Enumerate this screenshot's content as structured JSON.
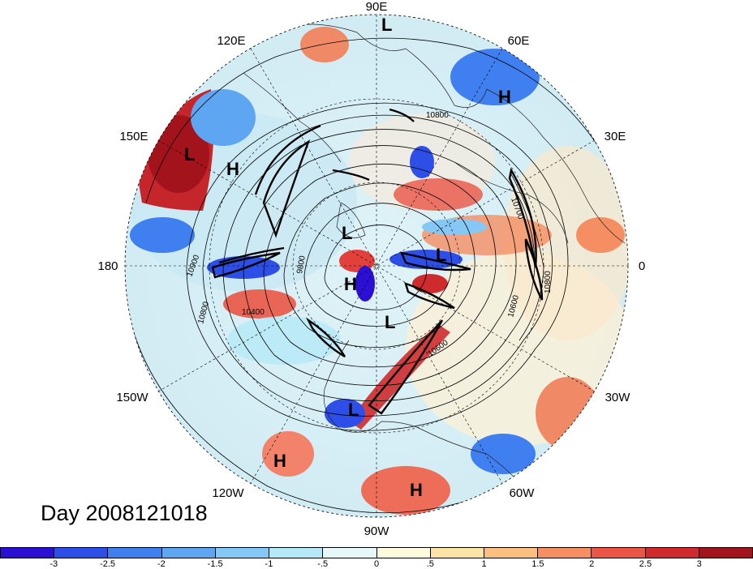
{
  "map": {
    "projection": "polar stereographic (north pole)",
    "longitude_labels": {
      "top": "90E",
      "upper_left": "120E",
      "upper_right": "60E",
      "left_upper": "150E",
      "right_upper": "30E",
      "left": "180",
      "right": "0",
      "left_lower": "150W",
      "right_lower": "30W",
      "lower_left": "120W",
      "lower_right": "60W",
      "bottom": "90W"
    },
    "pressure_centers": [
      {
        "type": "L",
        "label": "L"
      },
      {
        "type": "H",
        "label": "H"
      },
      {
        "type": "L",
        "label": "L"
      },
      {
        "type": "H",
        "label": "H"
      },
      {
        "type": "L",
        "label": "L"
      },
      {
        "type": "H",
        "label": "H"
      },
      {
        "type": "L",
        "label": "L"
      },
      {
        "type": "L",
        "label": "L"
      },
      {
        "type": "L",
        "label": "L"
      },
      {
        "type": "H",
        "label": "H"
      },
      {
        "type": "H",
        "label": "H"
      }
    ],
    "contour_labels": [
      "10800",
      "10700",
      "10900",
      "9800",
      "10800",
      "10400",
      "10600",
      "10600",
      "10800"
    ]
  },
  "caption": "Day 2008121018",
  "colorbar": {
    "colors": [
      "#2b0fd2",
      "#2d4fe8",
      "#3f7fef",
      "#5fa6f2",
      "#86c8f5",
      "#b5e9f7",
      "#e6f8fa",
      "#fffbdc",
      "#fde4a6",
      "#fbbf80",
      "#f58e63",
      "#ea5545",
      "#cf2a2e",
      "#a3131c"
    ],
    "tick_labels": [
      "-3",
      "-2.5",
      "-2",
      "-1.5",
      "-1",
      "-.5",
      "0",
      ".5",
      "1",
      "1.5",
      "2",
      "2.5",
      "3"
    ]
  }
}
